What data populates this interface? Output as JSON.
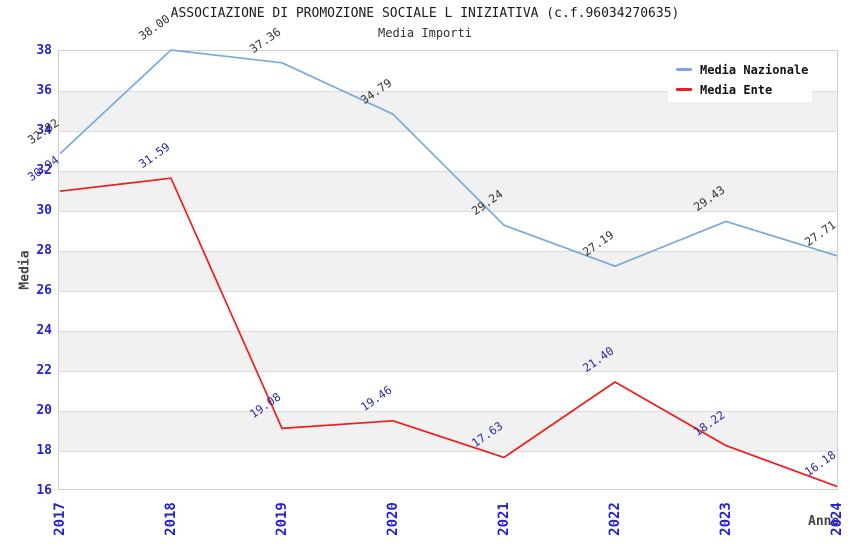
{
  "chart_data": {
    "type": "line",
    "title": "ASSOCIAZIONE DI PROMOZIONE SOCIALE L INIZIATIVA (c.f.96034270635)",
    "subtitle": "Media Importi",
    "xlabel": "Anno",
    "ylabel": "Media",
    "categories": [
      "2017",
      "2018",
      "2019",
      "2020",
      "2021",
      "2022",
      "2023",
      "2024"
    ],
    "series": [
      {
        "name": "Media Nazionale",
        "color": "#79a9dc",
        "label_color": "#333333",
        "values": [
          32.82,
          38.0,
          37.36,
          34.79,
          29.24,
          27.19,
          29.43,
          27.71
        ]
      },
      {
        "name": "Media Ente",
        "color": "#ee1c1c",
        "label_color": "#2b2b9e",
        "values": [
          30.94,
          31.59,
          19.08,
          19.46,
          17.63,
          21.4,
          18.22,
          16.18
        ]
      }
    ],
    "ylim": [
      16,
      38
    ],
    "ytick_step": 2,
    "tick_label_color": "#2424cc",
    "grid": "horizontal-bands",
    "legend_position": "top-right"
  }
}
